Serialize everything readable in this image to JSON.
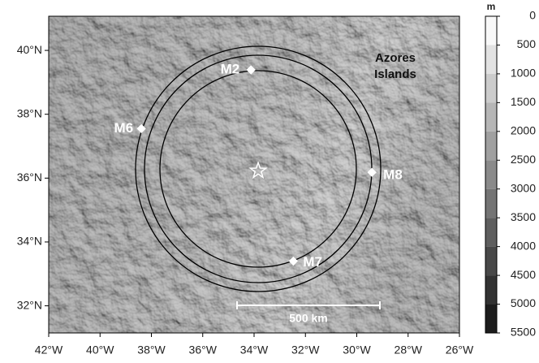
{
  "map": {
    "xlim": [
      -42,
      -26
    ],
    "ylim": [
      31.15,
      41.07
    ],
    "xticks": [
      {
        "value": -42,
        "label": "42°W"
      },
      {
        "value": -40,
        "label": "40°W"
      },
      {
        "value": -38,
        "label": "38°W"
      },
      {
        "value": -36,
        "label": "36°W"
      },
      {
        "value": -34,
        "label": "34°W"
      },
      {
        "value": -32,
        "label": "32°W"
      },
      {
        "value": -30,
        "label": "30°W"
      },
      {
        "value": -28,
        "label": "28°W"
      },
      {
        "value": -26,
        "label": "26°W"
      }
    ],
    "yticks": [
      {
        "value": 32,
        "label": "32°N"
      },
      {
        "value": 34,
        "label": "34°N"
      },
      {
        "value": 36,
        "label": "36°N"
      },
      {
        "value": 38,
        "label": "38°N"
      },
      {
        "value": 40,
        "label": "40°N"
      }
    ],
    "stations": [
      {
        "label": "M2",
        "lon": -34.12,
        "lat": 39.39
      },
      {
        "label": "M6",
        "lon": -38.39,
        "lat": 37.55
      },
      {
        "label": "M8",
        "lon": -29.41,
        "lat": 36.18
      },
      {
        "label": "M7",
        "lon": -32.47,
        "lat": 33.4
      }
    ],
    "epicenter": {
      "lon": -33.84,
      "lat": 36.23
    },
    "islands_label": [
      "Azores",
      "Islands"
    ],
    "scale_bar": "500 km",
    "colorbar": {
      "unit": "m",
      "ticks": [
        0,
        500,
        1000,
        1500,
        2000,
        2500,
        3000,
        3500,
        4000,
        4500,
        5000,
        5500
      ]
    }
  }
}
